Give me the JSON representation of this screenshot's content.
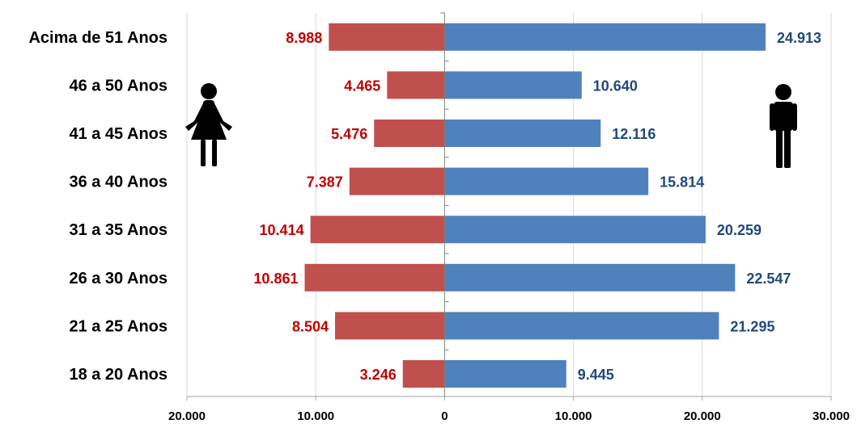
{
  "chart_data": {
    "type": "bar",
    "orientation": "horizontal",
    "layout": "population-pyramid",
    "categories": [
      "Acima de 51 Anos",
      "46 a 50 Anos",
      "41 a 45 Anos",
      "36 a 40 Anos",
      "31 a 35 Anos",
      "26 a 30 Anos",
      "21 a 25 Anos",
      "18 a 20 Anos"
    ],
    "series": [
      {
        "side": "left",
        "icon": "female-person-icon",
        "color": "#c0504d",
        "label_color": "#c00000",
        "values": [
          8988,
          4465,
          5476,
          7387,
          10414,
          10861,
          8504,
          3246
        ],
        "labels": [
          "8.988",
          "4.465",
          "5.476",
          "7.387",
          "10.414",
          "10.861",
          "8.504",
          "3.246"
        ]
      },
      {
        "side": "right",
        "icon": "male-person-icon",
        "color": "#4f81bd",
        "label_color": "#1f497d",
        "values": [
          24913,
          10640,
          12116,
          15814,
          20259,
          22547,
          21295,
          9445
        ],
        "labels": [
          "24.913",
          "10.640",
          "12.116",
          "15.814",
          "20.259",
          "22.547",
          "21.295",
          "9.445"
        ]
      }
    ],
    "xlim": [
      -20000,
      30000
    ],
    "xticks": [
      -20000,
      -10000,
      0,
      10000,
      20000,
      30000
    ],
    "xtick_labels": [
      "20.000",
      "10.000",
      "0",
      "10.000",
      "20.000",
      "30.000"
    ],
    "grid": true,
    "legend": "none",
    "title": "",
    "xlabel": "",
    "ylabel": ""
  }
}
